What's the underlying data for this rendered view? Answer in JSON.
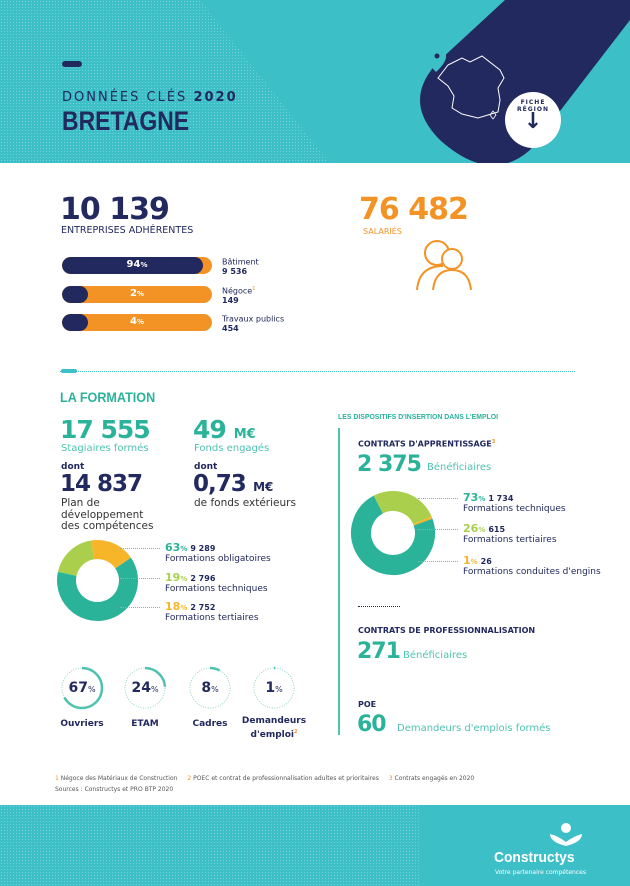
{
  "header": {
    "kicker": "DONNÉES CLÉS",
    "year": "2020",
    "region": "BRETAGNE",
    "badge": "FICHE RÉGION"
  },
  "colors": {
    "teal": "#3dbfc8",
    "navy": "#22295e",
    "orange": "#f39325",
    "green": "#2bb39a",
    "lime": "#a9cf4c",
    "yellow": "#f7b52a"
  },
  "entreprises": {
    "value": "10 139",
    "label": "ENTREPRISES ADHÉRENTES",
    "bars": [
      {
        "pct": 94,
        "pct_label": "94",
        "unit": "%",
        "name": "Bâtiment",
        "sup": "",
        "count": "9 536"
      },
      {
        "pct": 2,
        "pct_label": "2",
        "unit": "%",
        "name": "Négoce",
        "sup": "1",
        "count": "149"
      },
      {
        "pct": 4,
        "pct_label": "4",
        "unit": "%",
        "name": "Travaux publics",
        "sup": "",
        "count": "454"
      }
    ]
  },
  "salaries": {
    "value": "76 482",
    "label": "SALARIÉS",
    "icon": "people-icon"
  },
  "formation": {
    "title": "LA FORMATION",
    "stagiaires": {
      "value": "17 555",
      "label": "Stagiaires formés"
    },
    "fonds": {
      "value": "49",
      "unit": "M€",
      "label": "Fonds engagés"
    },
    "dont1": {
      "prefix": "dont",
      "value": "14 837",
      "label_lines": [
        "Plan de",
        "développement",
        "des compétences"
      ]
    },
    "dont2": {
      "prefix": "dont",
      "value": "0,73",
      "unit": "M€",
      "label": "de fonds extérieurs"
    },
    "donut": [
      {
        "pct": 63,
        "count": "9 289",
        "label": "Formations obligatoires",
        "color": "#2bb39a"
      },
      {
        "pct": 19,
        "count": "2 796",
        "label": "Formations techniques",
        "color": "#a9cf4c"
      },
      {
        "pct": 18,
        "count": "2 752",
        "label": "Formations tertiaires",
        "color": "#f7b52a"
      }
    ],
    "rings": [
      {
        "pct": 67,
        "label": "Ouvriers",
        "sup": ""
      },
      {
        "pct": 24,
        "label": "ETAM",
        "sup": ""
      },
      {
        "pct": 8,
        "label": "Cadres",
        "sup": ""
      },
      {
        "pct": 1,
        "label": "Demandeurs d'emploi",
        "sup": "2"
      }
    ]
  },
  "insertion": {
    "title": "LES DISPOSITIFS D'INSERTION DANS L'EMPLOI",
    "apprentissage": {
      "title": "CONTRATS D'APPRENTISSAGE",
      "sup": "3",
      "value": "2 375",
      "label": "Bénéficiaires",
      "donut": [
        {
          "pct": 73,
          "count": "1 734",
          "label": "Formations techniques",
          "color": "#2bb39a"
        },
        {
          "pct": 26,
          "count": "615",
          "label": "Formations tertiaires",
          "color": "#a9cf4c"
        },
        {
          "pct": 1,
          "count": "26",
          "label": "Formations conduites d'engins",
          "color": "#f7b52a"
        }
      ]
    },
    "pro": {
      "title": "CONTRATS DE PROFESSIONNALISATION",
      "value": "271",
      "label": "Bénéficiaires"
    },
    "poe": {
      "title": "POE",
      "value": "60",
      "label": "Demandeurs d'emplois formés"
    }
  },
  "footnotes": {
    "n1": "1",
    "t1": "Négoce des Matériaux de Construction",
    "n2": "2",
    "t2": "POEC et contrat de professionnalisation adultes et prioritaires",
    "n3": "3",
    "t3": "Contrats engagés en 2020",
    "sources": "Sources : Constructys et PRO BTP 2020"
  },
  "footer": {
    "brand": "Constructys",
    "tagline": "Votre partenaire compétences"
  },
  "pct_unit": "%"
}
